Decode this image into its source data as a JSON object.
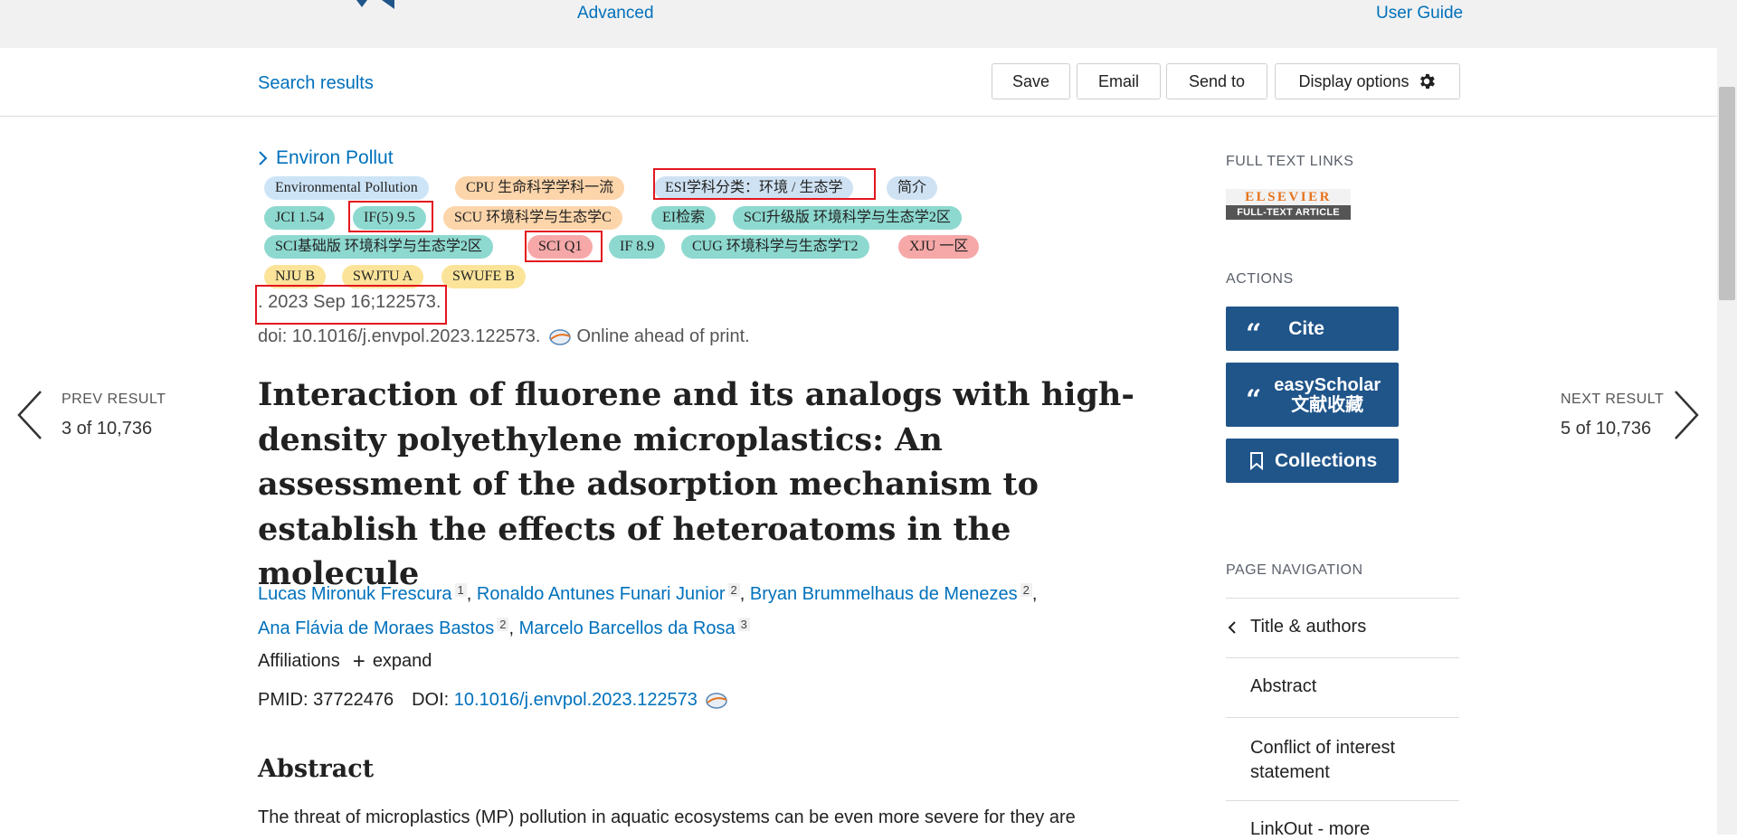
{
  "header": {
    "advanced_link": "Advanced",
    "user_guide_link": "User Guide"
  },
  "toolbar": {
    "search_results": "Search results",
    "save": "Save",
    "email": "Email",
    "send_to": "Send to",
    "display_options": "Display options"
  },
  "article": {
    "journal": "Environ Pollut",
    "tags": [
      "Environmental Pollution",
      "CPU 生命科学学科一流",
      "ESI学科分类：环境 / 生态学",
      "简介",
      "JCI 1.54",
      "IF(5) 9.5",
      "SCU 环境科学与生态学C",
      "EI检索",
      "SCI升级版 环境科学与生态学2区",
      "SCI基础版 环境科学与生态学2区",
      "SCI Q1",
      "IF 8.9",
      "CUG 环境科学与生态学T2",
      "XJU 一区",
      "NJU B",
      "SWJTU A",
      "SWUFE B"
    ],
    "date": ". 2023 Sep 16;122573.",
    "doi_line": "doi: 10.1016/j.envpol.2023.122573.",
    "online_status": "Online ahead of print.",
    "title": "Interaction of fluorene and its analogs with high-density polyethylene microplastics: An assessment of the adsorption mechanism to establish the effects of heteroatoms in the molecule",
    "authors": [
      {
        "name": "Lucas Mironuk Frescura",
        "aff": "1"
      },
      {
        "name": "Ronaldo Antunes Funari Junior",
        "aff": "2"
      },
      {
        "name": "Bryan Brummelhaus de Menezes",
        "aff": "2"
      },
      {
        "name": "Ana Flávia de Moraes Bastos",
        "aff": "2"
      },
      {
        "name": "Marcelo Barcellos da Rosa",
        "aff": "3"
      }
    ],
    "affiliations_label": "Affiliations",
    "expand_label": "expand",
    "pmid_label": "PMID:",
    "pmid": "37722476",
    "doi_label": "DOI:",
    "doi": "10.1016/j.envpol.2023.122573",
    "abstract_heading": "Abstract",
    "abstract_text": "The threat of microplastics (MP) pollution in aquatic ecosystems can be even more severe for they are"
  },
  "pager": {
    "prev_label": "PREV RESULT",
    "prev_count": "3 of 10,736",
    "next_label": "NEXT RESULT",
    "next_count": "5 of 10,736"
  },
  "sidebar": {
    "full_text_links": "FULL TEXT LINKS",
    "elsevier_brand": "ELSEVIER",
    "elsevier_sub": "FULL-TEXT ARTICLE",
    "actions_heading": "ACTIONS",
    "cite": "Cite",
    "easyscholar_line1": "easyScholar",
    "easyscholar_line2": "文献收藏",
    "collections": "Collections",
    "page_navigation": "PAGE NAVIGATION",
    "nav_items": [
      "Title & authors",
      "Abstract",
      "Conflict of interest statement",
      "LinkOut - more"
    ]
  }
}
